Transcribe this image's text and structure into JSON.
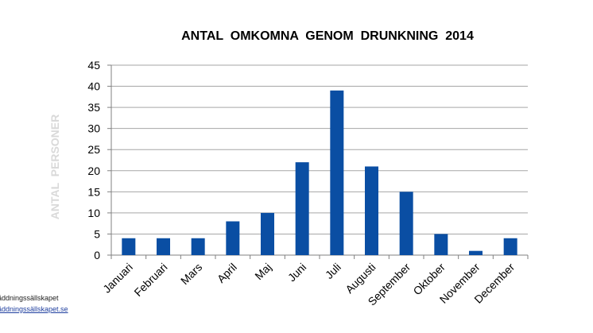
{
  "chart_data": {
    "type": "bar",
    "title": "ANTAL  OMKOMNA  GENOM  DRUNKNING  2014",
    "xlabel": "",
    "ylabel": "ANTAL  PERSONER",
    "categories": [
      "Januari",
      "Februari",
      "Mars",
      "April",
      "Maj",
      "Juni",
      "Juli",
      "Augusti",
      "September",
      "Oktober",
      "November",
      "December"
    ],
    "values": [
      4,
      4,
      4,
      8,
      10,
      22,
      39,
      21,
      15,
      5,
      1,
      4
    ],
    "ylim": [
      0,
      45
    ],
    "yticks": [
      0,
      5,
      10,
      15,
      20,
      25,
      30,
      35,
      40,
      45
    ],
    "grid": true,
    "bar_color": "#0a4ea3",
    "grid_color": "#a6a6a6"
  },
  "footer": {
    "organization": "räddningssällskapet",
    "website": "räddningssällskapet.se"
  }
}
